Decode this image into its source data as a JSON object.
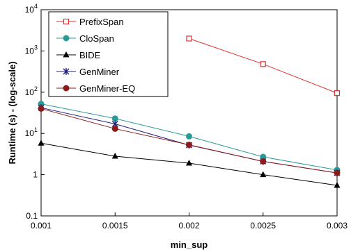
{
  "chart_data": {
    "type": "line",
    "xlabel": "min_sup",
    "ylabel": "Runtime (s) - (log-scale)",
    "xlim": [
      0.001,
      0.003
    ],
    "ylim": [
      0.1,
      10000
    ],
    "yscale": "log",
    "x_ticks": [
      "0.001",
      "0.0015",
      "0.002",
      "0.0025",
      "0.003"
    ],
    "y_ticks": [
      {
        "value": 0.1,
        "base": "0.1",
        "exp": ""
      },
      {
        "value": 1,
        "base": "1",
        "exp": ""
      },
      {
        "value": 10,
        "base": "10",
        "exp": "1"
      },
      {
        "value": 100,
        "base": "10",
        "exp": "2"
      },
      {
        "value": 1000,
        "base": "10",
        "exp": "3"
      },
      {
        "value": 10000,
        "base": "10",
        "exp": "4"
      }
    ],
    "grid": false,
    "legend_position": "top-left",
    "series": [
      {
        "name": "PrefixSpan",
        "color": "#e03030",
        "marker": "square-open",
        "x": [
          0.002,
          0.0025,
          0.003
        ],
        "y": [
          2000,
          480,
          95
        ]
      },
      {
        "name": "CloSpan",
        "color": "#2a9a96",
        "marker": "circle",
        "x": [
          0.001,
          0.0015,
          0.002,
          0.0025,
          0.003
        ],
        "y": [
          52,
          23,
          8.5,
          2.7,
          1.3
        ]
      },
      {
        "name": "BIDE",
        "color": "#000000",
        "marker": "triangle",
        "x": [
          0.001,
          0.0015,
          0.002,
          0.0025,
          0.003
        ],
        "y": [
          5.8,
          2.8,
          1.9,
          1.0,
          0.55
        ]
      },
      {
        "name": "GenMiner",
        "color": "#202080",
        "marker": "star",
        "x": [
          0.001,
          0.0015,
          0.002,
          0.0025,
          0.003
        ],
        "y": [
          42,
          17,
          5.2,
          2.1,
          1.1
        ]
      },
      {
        "name": "GenMiner-EQ",
        "color": "#8b1a1a",
        "marker": "circle",
        "x": [
          0.001,
          0.0015,
          0.002,
          0.0025,
          0.003
        ],
        "y": [
          40,
          13,
          5.3,
          2.1,
          1.1
        ]
      }
    ]
  }
}
